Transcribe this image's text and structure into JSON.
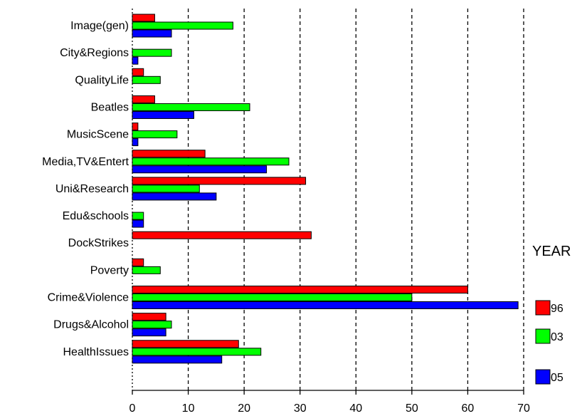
{
  "chart_data": {
    "type": "bar",
    "orientation": "horizontal",
    "categories": [
      "Image(gen)",
      "City&Regions",
      "QualityLife",
      "Beatles",
      "MusicScene",
      "Media,TV&Entert",
      "Uni&Research",
      "Edu&schools",
      "DockStrikes",
      "Poverty",
      "Crime&Violence",
      "Drugs&Alcohol",
      "HealthIssues"
    ],
    "series": [
      {
        "name": "96",
        "color": "#ff0000",
        "values": [
          4,
          0,
          2,
          4,
          1,
          13,
          31,
          0,
          32,
          2,
          60,
          6,
          19
        ]
      },
      {
        "name": "03",
        "color": "#00ff00",
        "values": [
          18,
          7,
          5,
          21,
          8,
          28,
          12,
          2,
          0,
          5,
          50,
          7,
          23
        ]
      },
      {
        "name": "05",
        "color": "#0000ff",
        "values": [
          7,
          1,
          0,
          11,
          1,
          24,
          15,
          2,
          0,
          0,
          69,
          6,
          16
        ]
      }
    ],
    "xlim": [
      0,
      70
    ],
    "xticks": [
      0,
      10,
      20,
      30,
      40,
      50,
      60,
      70
    ],
    "grid": "vertical dashed",
    "legend": {
      "title": "YEAR",
      "position": "right"
    }
  }
}
